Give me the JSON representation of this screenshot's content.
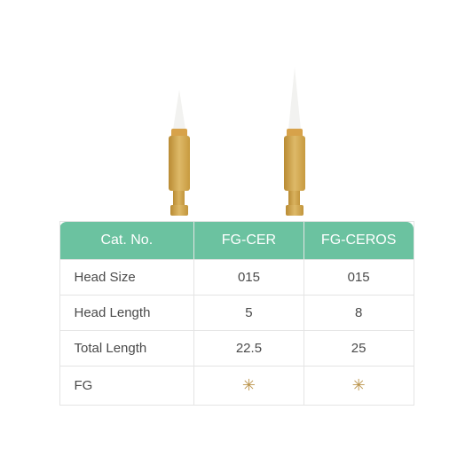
{
  "table": {
    "header_bg": "#6bc2a0",
    "header_fg": "#ffffff",
    "border_color": "#e4e4e4",
    "text_color": "#4a4a4a",
    "star_color": "#bb944c",
    "header": {
      "cat": "Cat. No.",
      "p1": "FG-CER",
      "p2": "FG-CEROS"
    },
    "rows": {
      "head_size": {
        "label": "Head Size",
        "p1": "015",
        "p2": "015"
      },
      "head_length": {
        "label": "Head Length",
        "p1": "5",
        "p2": "8"
      },
      "total_length": {
        "label": "Total Length",
        "p1": "22.5",
        "p2": "25"
      },
      "fg": {
        "label": "FG",
        "p1": "✳",
        "p2": "✳"
      }
    }
  },
  "products": {
    "shaft_color": "#d7a24a",
    "tip_color": "#f2f2f0"
  }
}
